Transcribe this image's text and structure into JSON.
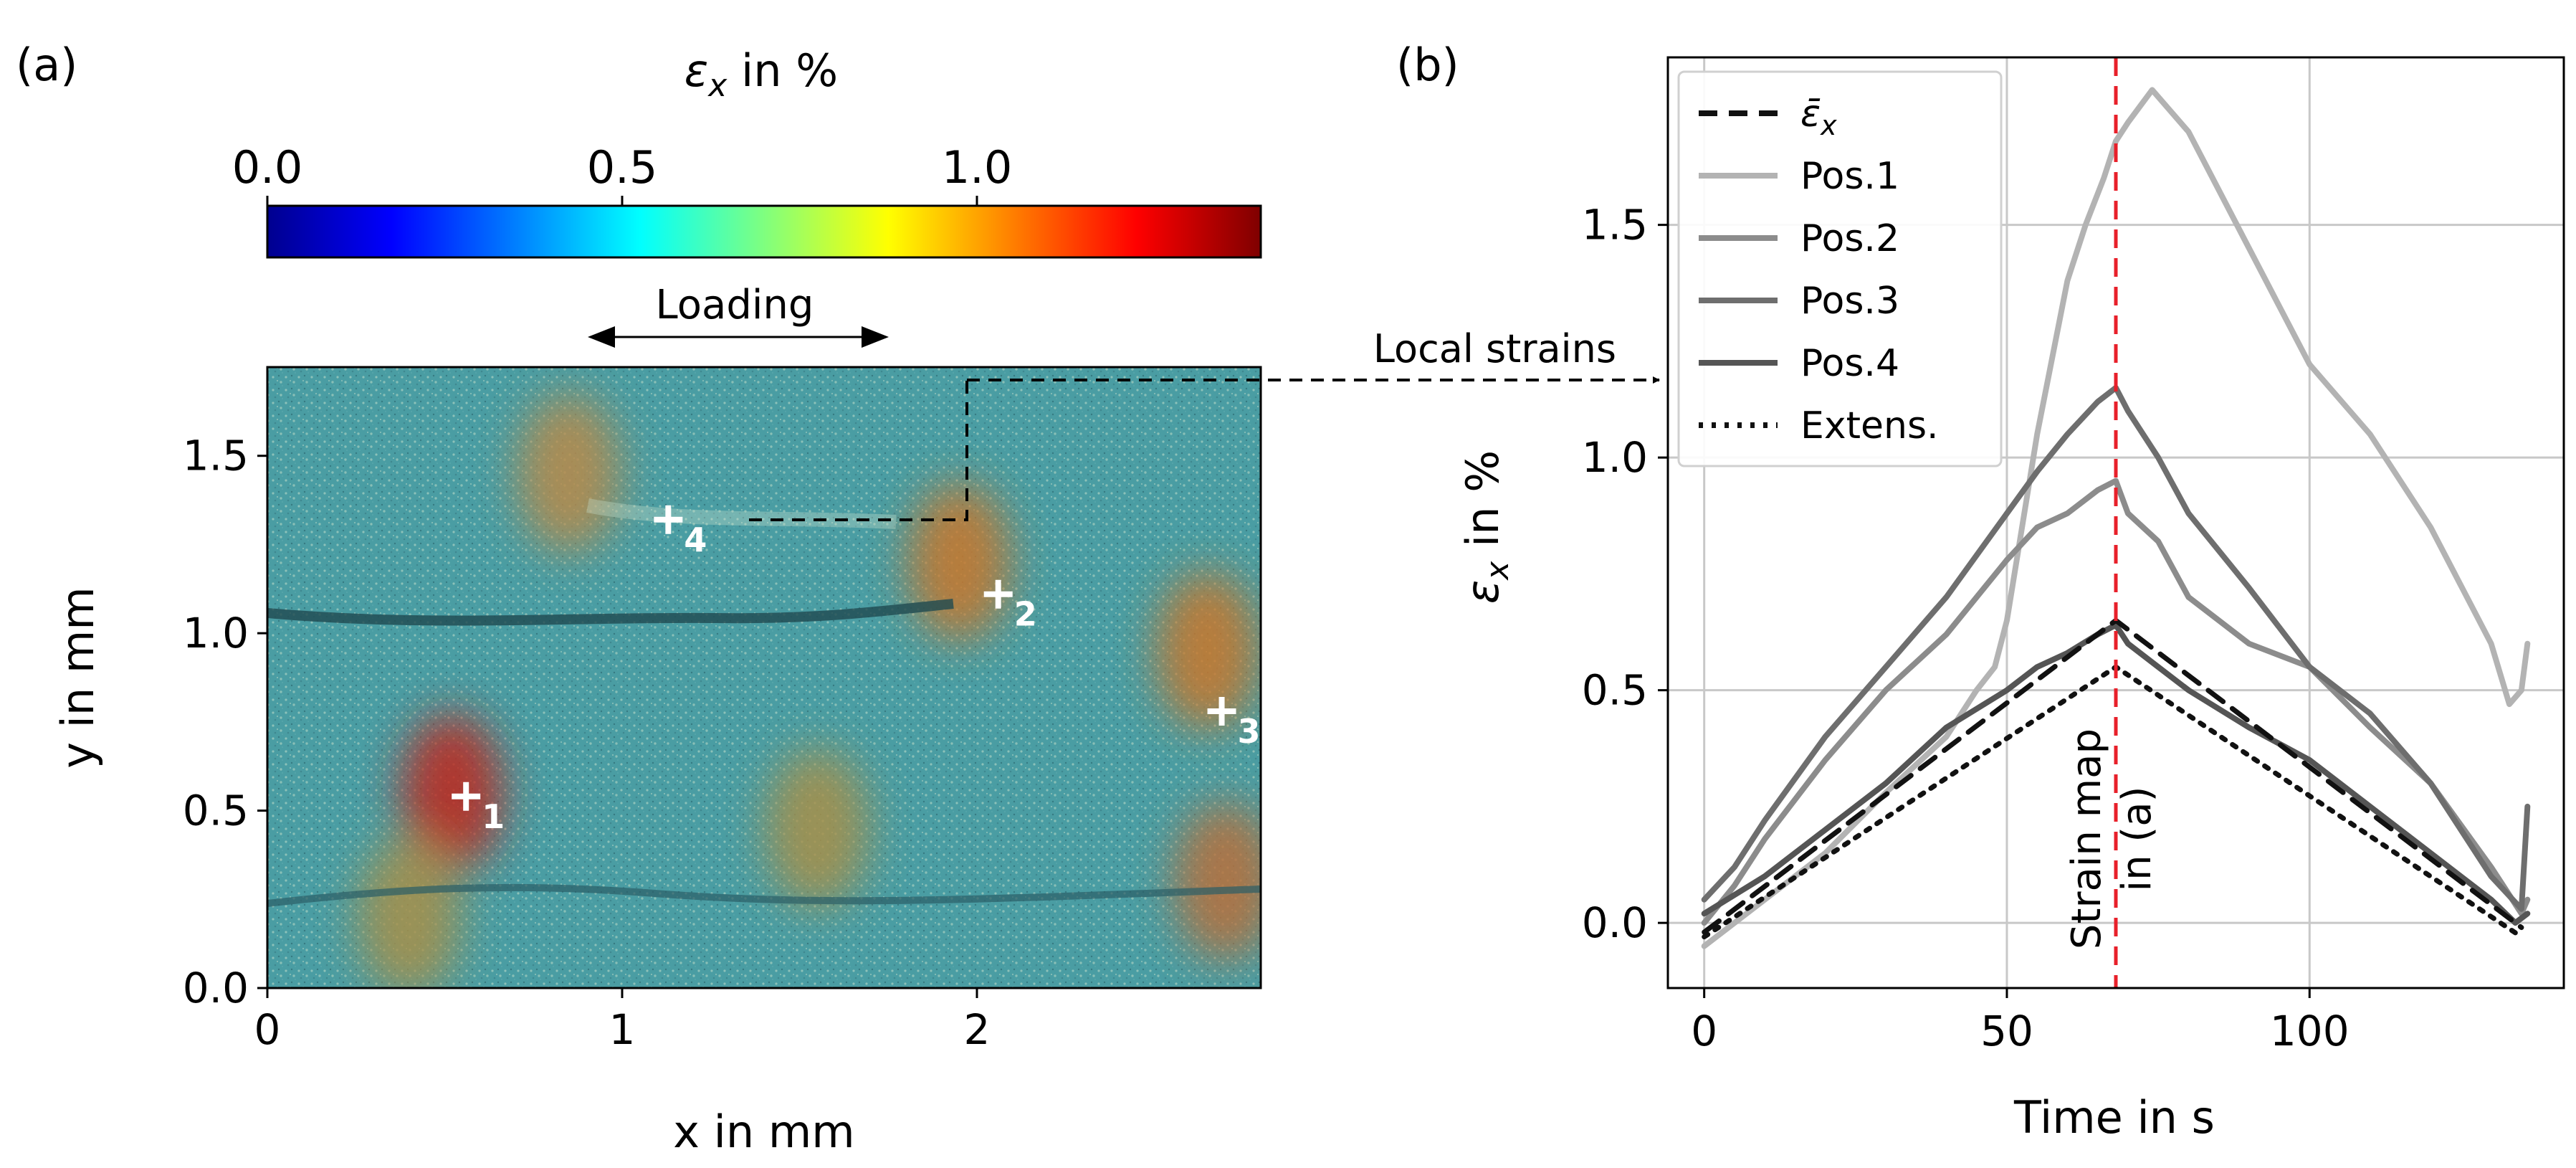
{
  "panel_a": {
    "label": "(a)",
    "colorbar": {
      "title_sym": "ε",
      "title_sub": "x",
      "title_rest": " in %",
      "ticks": [
        {
          "value": 0.0,
          "label": "0.0"
        },
        {
          "value": 0.5,
          "label": "0.5"
        },
        {
          "value": 1.0,
          "label": "1.0"
        }
      ],
      "range": [
        0.0,
        1.4
      ],
      "colormap_stops": [
        "#00008f",
        "#0000ff",
        "#007fff",
        "#00ffff",
        "#7fff7f",
        "#ffff00",
        "#ff7f00",
        "#ff0000",
        "#7f0000"
      ]
    },
    "loading_label": "Loading",
    "local_strains_label": "Local strains",
    "xlabel": "x in mm",
    "ylabel": "y in mm",
    "xlim": [
      0,
      2.8
    ],
    "ylim": [
      0,
      1.75
    ],
    "xticks": [
      {
        "value": 0,
        "label": "0"
      },
      {
        "value": 1,
        "label": "1"
      },
      {
        "value": 2,
        "label": "2"
      }
    ],
    "yticks": [
      {
        "value": 0.0,
        "label": "0.0"
      },
      {
        "value": 0.5,
        "label": "0.5"
      },
      {
        "value": 1.0,
        "label": "1.0"
      },
      {
        "value": 1.5,
        "label": "1.5"
      }
    ],
    "positions": [
      {
        "label": "1",
        "x": 0.56,
        "y": 0.54
      },
      {
        "label": "2",
        "x": 2.06,
        "y": 1.11
      },
      {
        "label": "3",
        "x": 2.69,
        "y": 0.78
      },
      {
        "label": "4",
        "x": 1.13,
        "y": 1.32
      }
    ],
    "hot_spots": [
      {
        "x": 0.52,
        "y": 0.55,
        "color": "#c0281e"
      },
      {
        "x": 1.95,
        "y": 1.2,
        "color": "#c9772a"
      },
      {
        "x": 2.65,
        "y": 0.95,
        "color": "#c9772a"
      },
      {
        "x": 0.85,
        "y": 1.45,
        "color": "#b98a4a"
      },
      {
        "x": 2.7,
        "y": 0.3,
        "color": "#b9703a"
      },
      {
        "x": 0.4,
        "y": 0.2,
        "color": "#a8904a"
      },
      {
        "x": 1.55,
        "y": 0.45,
        "color": "#a8904a"
      }
    ]
  },
  "chart_data": {
    "type": "line",
    "label": "(b)",
    "xlabel": "Time in s",
    "ylabel_sym": "ε",
    "ylabel_sub": "x",
    "ylabel_rest": " in %",
    "xlim": [
      -6,
      142
    ],
    "ylim": [
      -0.14,
      1.86
    ],
    "xticks": [
      {
        "value": 0,
        "label": "0"
      },
      {
        "value": 50,
        "label": "50"
      },
      {
        "value": 100,
        "label": "100"
      }
    ],
    "yticks": [
      {
        "value": 0.0,
        "label": "0.0"
      },
      {
        "value": 0.5,
        "label": "0.5"
      },
      {
        "value": 1.0,
        "label": "1.0"
      },
      {
        "value": 1.5,
        "label": "1.5"
      }
    ],
    "grid": true,
    "legend_position": "top-left",
    "annotation": {
      "text_line1": "Strain map",
      "text_line2": "in (a)",
      "x": 68
    },
    "vline": {
      "x": 68,
      "color": "#e8202a"
    },
    "series": [
      {
        "name": "Pos.1",
        "color": "#b3b3b3",
        "dash": "solid",
        "x": [
          0,
          10,
          20,
          30,
          40,
          45,
          48,
          50,
          55,
          60,
          63,
          66,
          68,
          70,
          74,
          80,
          90,
          100,
          110,
          120,
          130,
          133,
          135,
          136
        ],
        "y": [
          -0.05,
          0.05,
          0.15,
          0.28,
          0.4,
          0.5,
          0.55,
          0.65,
          1.05,
          1.38,
          1.5,
          1.6,
          1.68,
          1.72,
          1.79,
          1.7,
          1.45,
          1.2,
          1.05,
          0.85,
          0.6,
          0.47,
          0.5,
          0.6
        ]
      },
      {
        "name": "Pos.2",
        "color": "#8c8c8c",
        "dash": "solid",
        "x": [
          0,
          5,
          10,
          20,
          30,
          40,
          50,
          55,
          60,
          65,
          68,
          70,
          75,
          80,
          90,
          100,
          110,
          120,
          130,
          135,
          136
        ],
        "y": [
          0.0,
          0.08,
          0.18,
          0.35,
          0.5,
          0.62,
          0.78,
          0.85,
          0.88,
          0.93,
          0.95,
          0.88,
          0.82,
          0.7,
          0.6,
          0.55,
          0.42,
          0.3,
          0.12,
          0.02,
          0.05
        ]
      },
      {
        "name": "Pos.3",
        "color": "#6e6e6e",
        "dash": "solid",
        "x": [
          0,
          5,
          10,
          20,
          30,
          40,
          50,
          55,
          60,
          65,
          68,
          70,
          75,
          80,
          90,
          100,
          110,
          120,
          130,
          135,
          136
        ],
        "y": [
          0.05,
          0.12,
          0.22,
          0.4,
          0.55,
          0.7,
          0.88,
          0.97,
          1.05,
          1.12,
          1.15,
          1.1,
          1.0,
          0.88,
          0.72,
          0.55,
          0.45,
          0.3,
          0.1,
          0.03,
          0.25
        ]
      },
      {
        "name": "Pos.4",
        "color": "#555555",
        "dash": "solid",
        "x": [
          0,
          10,
          20,
          30,
          40,
          50,
          55,
          60,
          65,
          68,
          70,
          75,
          80,
          90,
          100,
          110,
          120,
          130,
          134,
          136
        ],
        "y": [
          0.02,
          0.1,
          0.2,
          0.3,
          0.42,
          0.5,
          0.55,
          0.58,
          0.62,
          0.64,
          0.6,
          0.55,
          0.5,
          0.42,
          0.35,
          0.25,
          0.15,
          0.05,
          0.0,
          0.02
        ]
      },
      {
        "name": "ε̄x",
        "color": "#111111",
        "dash": "dashed",
        "x": [
          0,
          68,
          135
        ],
        "y": [
          -0.02,
          0.65,
          -0.01
        ]
      },
      {
        "name": "Extens.",
        "color": "#111111",
        "dash": "dotted",
        "x": [
          0,
          68,
          135
        ],
        "y": [
          -0.03,
          0.55,
          -0.03
        ]
      }
    ],
    "legend": [
      {
        "key": "mean",
        "sym": "ε̄",
        "sub": "x",
        "text": "",
        "color": "#111111",
        "dash": "dashed"
      },
      {
        "key": "pos1",
        "text": "Pos.1",
        "color": "#b3b3b3",
        "dash": "solid"
      },
      {
        "key": "pos2",
        "text": "Pos.2",
        "color": "#8c8c8c",
        "dash": "solid"
      },
      {
        "key": "pos3",
        "text": "Pos.3",
        "color": "#6e6e6e",
        "dash": "solid"
      },
      {
        "key": "pos4",
        "text": "Pos.4",
        "color": "#555555",
        "dash": "solid"
      },
      {
        "key": "ext",
        "text": "Extens.",
        "color": "#111111",
        "dash": "dotted"
      }
    ]
  }
}
